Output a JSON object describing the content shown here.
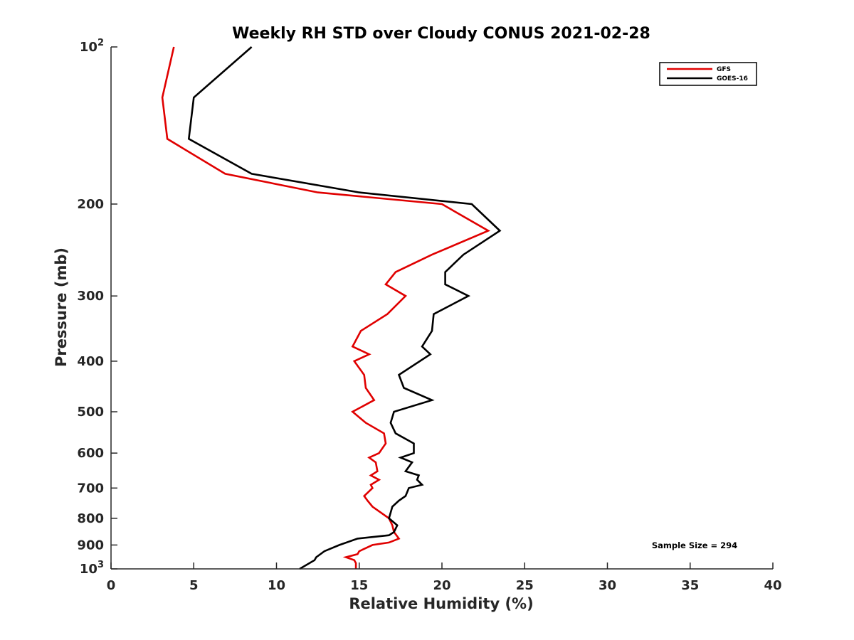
{
  "chart_data": {
    "type": "line",
    "title": "Weekly RH STD over Cloudy CONUS 2021-02-28",
    "xlabel": "Relative Humidity (%)",
    "ylabel": "Pressure (mb)",
    "xlim": [
      0,
      40
    ],
    "ylim": [
      100,
      1000
    ],
    "y_scale": "log",
    "y_reversed": true,
    "grid": false,
    "legend_position": "top-right",
    "x_ticks": [
      0,
      5,
      10,
      15,
      20,
      25,
      30,
      35,
      40
    ],
    "y_ticks": [
      {
        "value": 100,
        "base": "10",
        "exp": "2"
      },
      {
        "value": 200,
        "label": "200"
      },
      {
        "value": 300,
        "label": "300"
      },
      {
        "value": 400,
        "label": "400"
      },
      {
        "value": 500,
        "label": "500"
      },
      {
        "value": 600,
        "label": "600"
      },
      {
        "value": 700,
        "label": "700"
      },
      {
        "value": 800,
        "label": "800"
      },
      {
        "value": 900,
        "label": "900"
      },
      {
        "value": 1000,
        "base": "10",
        "exp": "3"
      }
    ],
    "annotation": "Sample Size = 294",
    "series": [
      {
        "name": "GFS",
        "color": "#e00000",
        "points": [
          [
            3.8,
            100
          ],
          [
            3.1,
            125
          ],
          [
            3.4,
            150
          ],
          [
            6.9,
            175
          ],
          [
            12.5,
            190
          ],
          [
            20.0,
            200
          ],
          [
            22.8,
            225
          ],
          [
            19.4,
            250
          ],
          [
            17.2,
            270
          ],
          [
            16.6,
            285
          ],
          [
            17.8,
            300
          ],
          [
            16.7,
            325
          ],
          [
            15.1,
            350
          ],
          [
            14.6,
            375
          ],
          [
            15.6,
            388
          ],
          [
            14.7,
            400
          ],
          [
            15.3,
            425
          ],
          [
            15.4,
            450
          ],
          [
            15.9,
            475
          ],
          [
            14.6,
            500
          ],
          [
            15.4,
            525
          ],
          [
            16.5,
            550
          ],
          [
            16.6,
            575
          ],
          [
            16.2,
            600
          ],
          [
            15.6,
            612
          ],
          [
            16.0,
            625
          ],
          [
            16.1,
            650
          ],
          [
            15.7,
            662
          ],
          [
            16.2,
            675
          ],
          [
            15.7,
            690
          ],
          [
            15.8,
            700
          ],
          [
            15.3,
            725
          ],
          [
            15.5,
            740
          ],
          [
            15.8,
            760
          ],
          [
            16.8,
            800
          ],
          [
            17.0,
            825
          ],
          [
            17.1,
            850
          ],
          [
            17.4,
            875
          ],
          [
            16.8,
            890
          ],
          [
            15.8,
            900
          ],
          [
            15.0,
            925
          ],
          [
            14.9,
            937
          ],
          [
            14.2,
            950
          ],
          [
            14.7,
            962
          ],
          [
            14.8,
            975
          ],
          [
            14.8,
            1000
          ]
        ]
      },
      {
        "name": "GOES-16",
        "color": "#000000",
        "points": [
          [
            8.5,
            100
          ],
          [
            5.0,
            125
          ],
          [
            4.7,
            150
          ],
          [
            8.5,
            175
          ],
          [
            15.0,
            190
          ],
          [
            21.8,
            200
          ],
          [
            23.5,
            225
          ],
          [
            21.3,
            250
          ],
          [
            20.2,
            270
          ],
          [
            20.2,
            285
          ],
          [
            21.6,
            300
          ],
          [
            19.5,
            325
          ],
          [
            19.4,
            350
          ],
          [
            18.8,
            375
          ],
          [
            19.3,
            388
          ],
          [
            17.4,
            425
          ],
          [
            17.7,
            450
          ],
          [
            19.4,
            475
          ],
          [
            17.1,
            500
          ],
          [
            16.9,
            525
          ],
          [
            17.2,
            550
          ],
          [
            18.3,
            575
          ],
          [
            18.3,
            600
          ],
          [
            17.5,
            612
          ],
          [
            18.2,
            625
          ],
          [
            17.8,
            650
          ],
          [
            18.6,
            662
          ],
          [
            18.5,
            675
          ],
          [
            18.8,
            690
          ],
          [
            18.0,
            700
          ],
          [
            17.8,
            725
          ],
          [
            17.4,
            740
          ],
          [
            17.0,
            760
          ],
          [
            16.8,
            800
          ],
          [
            17.3,
            825
          ],
          [
            17.1,
            850
          ],
          [
            16.8,
            862
          ],
          [
            14.9,
            875
          ],
          [
            13.8,
            900
          ],
          [
            12.9,
            925
          ],
          [
            12.4,
            950
          ],
          [
            12.3,
            962
          ],
          [
            11.4,
            1000
          ]
        ]
      }
    ]
  }
}
